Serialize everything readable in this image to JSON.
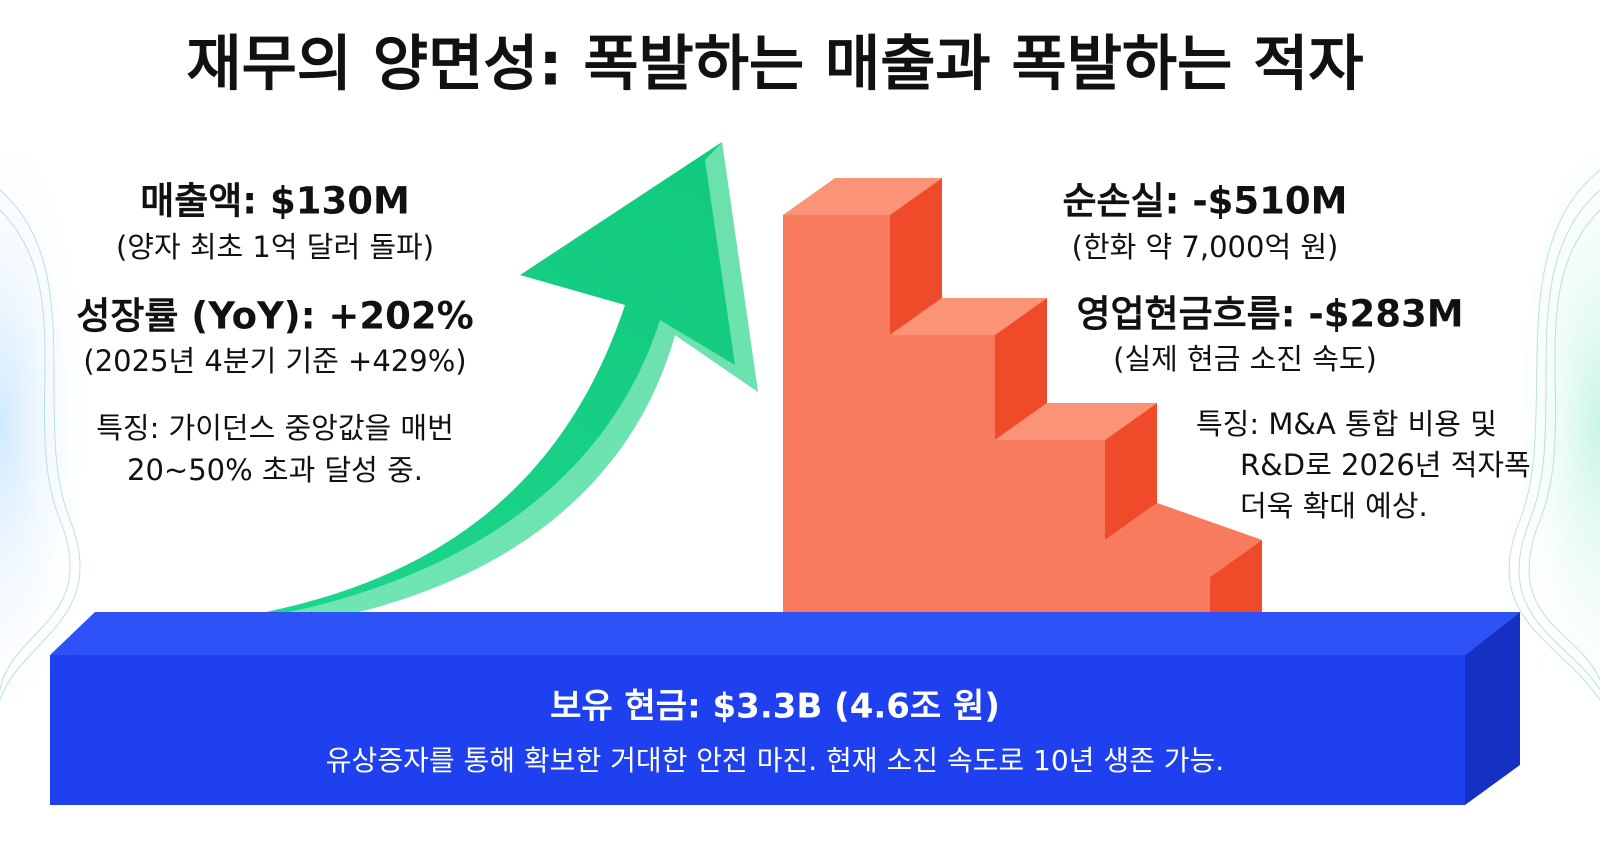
{
  "title": "재무의 양면성: 폭발하는 매출과 폭발하는 적자",
  "growth_side": {
    "revenue": {
      "headline": "매출액: $130M",
      "note": "(양자 최초 1억 달러 돌파)"
    },
    "growth_rate": {
      "headline": "성장률 (YoY): +202%",
      "note": "(2025년 4분기 기준 +429%)"
    },
    "feature": {
      "lines": [
        "특징: 가이던스 중앙값을 매번",
        "20~50% 초과 달성 중."
      ]
    }
  },
  "loss_side": {
    "net_loss": {
      "headline": "순손실: -$510M",
      "note": "(한화 약 7,000억 원)"
    },
    "operating_cash_flow": {
      "headline": "영업현금흐름: -$283M",
      "note": "(실제 현금 소진 속도)"
    },
    "feature": {
      "lines": [
        "특징: M&A 통합 비용 및",
        "R&D로 2026년 적자폭",
        "더욱 확대 예상."
      ]
    }
  },
  "cash_base": {
    "headline": "보유 현금: $3.3B (4.6조 원)",
    "note": "유상증자를 통해 확보한 거대한 안전 마진. 현재 소진 속도로 10년 생존 가능."
  }
}
